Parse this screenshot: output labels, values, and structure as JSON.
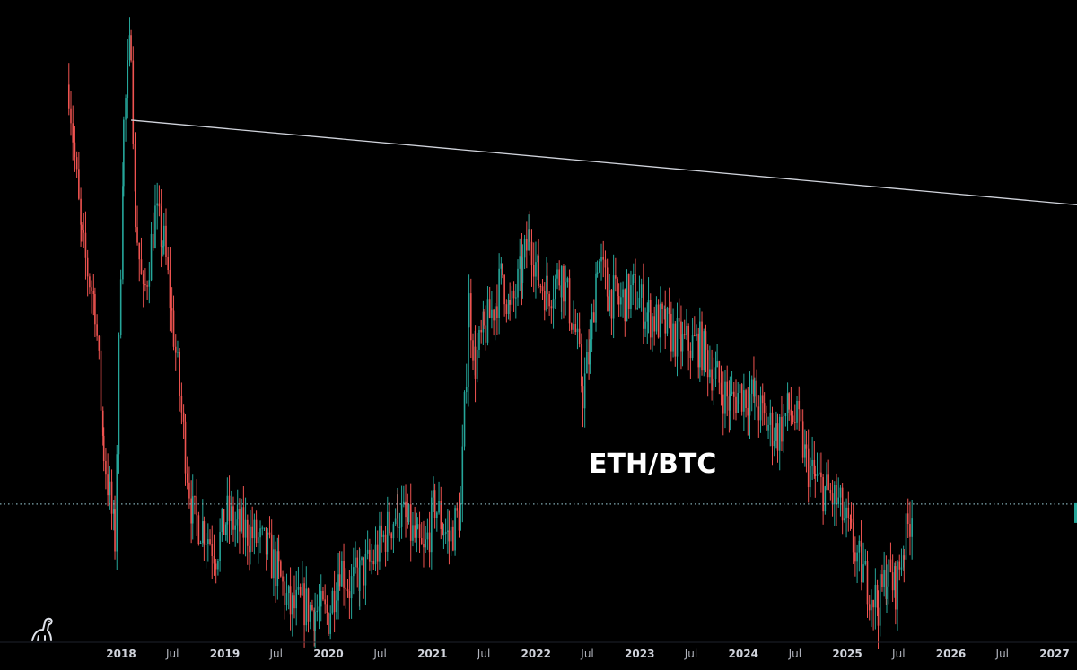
{
  "chart_data": {
    "type": "candlestick",
    "title": "ETH/BTC",
    "x_axis": {
      "ticks": [
        {
          "label": "2018",
          "date": "2018-01-01",
          "kind": "year"
        },
        {
          "label": "Jul",
          "date": "2018-07-01",
          "kind": "month"
        },
        {
          "label": "2019",
          "date": "2019-01-01",
          "kind": "year"
        },
        {
          "label": "Jul",
          "date": "2019-07-01",
          "kind": "month"
        },
        {
          "label": "2020",
          "date": "2020-01-01",
          "kind": "year"
        },
        {
          "label": "Jul",
          "date": "2020-07-01",
          "kind": "month"
        },
        {
          "label": "2021",
          "date": "2021-01-01",
          "kind": "year"
        },
        {
          "label": "Jul",
          "date": "2021-07-01",
          "kind": "month"
        },
        {
          "label": "2022",
          "date": "2022-01-01",
          "kind": "year"
        },
        {
          "label": "Jul",
          "date": "2022-07-01",
          "kind": "month"
        },
        {
          "label": "2023",
          "date": "2023-01-01",
          "kind": "year"
        },
        {
          "label": "Jul",
          "date": "2023-07-01",
          "kind": "month"
        },
        {
          "label": "2024",
          "date": "2024-01-01",
          "kind": "year"
        },
        {
          "label": "Jul",
          "date": "2024-07-01",
          "kind": "month"
        },
        {
          "label": "2025",
          "date": "2025-01-01",
          "kind": "year"
        },
        {
          "label": "Jul",
          "date": "2025-07-01",
          "kind": "month"
        },
        {
          "label": "2026",
          "date": "2026-01-01",
          "kind": "year"
        },
        {
          "label": "Jul",
          "date": "2026-07-01",
          "kind": "month"
        },
        {
          "label": "2027",
          "date": "2027-01-01",
          "kind": "year"
        }
      ]
    },
    "price_path": [
      [
        "2017-07-01",
        0.107
      ],
      [
        "2017-08-15",
        0.08
      ],
      [
        "2017-10-01",
        0.07
      ],
      [
        "2017-11-01",
        0.045
      ],
      [
        "2017-12-10",
        0.03
      ],
      [
        "2018-01-10",
        0.1
      ],
      [
        "2018-02-05",
        0.115
      ],
      [
        "2018-02-20",
        0.085
      ],
      [
        "2018-03-20",
        0.07
      ],
      [
        "2018-05-01",
        0.085
      ],
      [
        "2018-06-01",
        0.08
      ],
      [
        "2018-07-05",
        0.065
      ],
      [
        "2018-08-15",
        0.045
      ],
      [
        "2018-09-10",
        0.034
      ],
      [
        "2018-10-20",
        0.032
      ],
      [
        "2018-12-01",
        0.028
      ],
      [
        "2019-01-10",
        0.034
      ],
      [
        "2019-02-15",
        0.032
      ],
      [
        "2019-04-01",
        0.031
      ],
      [
        "2019-06-01",
        0.028
      ],
      [
        "2019-07-10",
        0.024
      ],
      [
        "2019-08-20",
        0.018
      ],
      [
        "2019-10-01",
        0.019
      ],
      [
        "2019-11-15",
        0.018
      ],
      [
        "2020-01-01",
        0.017
      ],
      [
        "2020-02-10",
        0.026
      ],
      [
        "2020-03-15",
        0.022
      ],
      [
        "2020-04-20",
        0.024
      ],
      [
        "2020-06-01",
        0.026
      ],
      [
        "2020-07-20",
        0.031
      ],
      [
        "2020-09-01",
        0.035
      ],
      [
        "2020-10-10",
        0.032
      ],
      [
        "2020-11-10",
        0.029
      ],
      [
        "2020-12-01",
        0.027
      ],
      [
        "2021-01-10",
        0.036
      ],
      [
        "2021-02-10",
        0.032
      ],
      [
        "2021-03-01",
        0.03
      ],
      [
        "2021-04-10",
        0.035
      ],
      [
        "2021-05-10",
        0.07
      ],
      [
        "2021-06-01",
        0.06
      ],
      [
        "2021-07-01",
        0.065
      ],
      [
        "2021-08-10",
        0.07
      ],
      [
        "2021-09-05",
        0.075
      ],
      [
        "2021-10-01",
        0.068
      ],
      [
        "2021-11-15",
        0.076
      ],
      [
        "2021-12-10",
        0.082
      ],
      [
        "2022-01-10",
        0.074
      ],
      [
        "2022-02-10",
        0.072
      ],
      [
        "2022-04-01",
        0.075
      ],
      [
        "2022-05-20",
        0.065
      ],
      [
        "2022-06-15",
        0.055
      ],
      [
        "2022-07-10",
        0.062
      ],
      [
        "2022-08-05",
        0.078
      ],
      [
        "2022-09-10",
        0.072
      ],
      [
        "2022-10-20",
        0.07
      ],
      [
        "2022-12-10",
        0.072
      ],
      [
        "2023-02-01",
        0.068
      ],
      [
        "2023-04-01",
        0.066
      ],
      [
        "2023-06-01",
        0.063
      ],
      [
        "2023-08-01",
        0.063
      ],
      [
        "2023-10-01",
        0.057
      ],
      [
        "2023-11-15",
        0.053
      ],
      [
        "2023-12-20",
        0.055
      ],
      [
        "2024-02-10",
        0.054
      ],
      [
        "2024-03-15",
        0.05
      ],
      [
        "2024-05-01",
        0.048
      ],
      [
        "2024-06-10",
        0.052
      ],
      [
        "2024-07-15",
        0.049
      ],
      [
        "2024-08-10",
        0.043
      ],
      [
        "2024-09-10",
        0.04
      ],
      [
        "2024-10-20",
        0.038
      ],
      [
        "2024-12-01",
        0.036
      ],
      [
        "2025-01-15",
        0.03
      ],
      [
        "2025-02-20",
        0.025
      ],
      [
        "2025-03-20",
        0.022
      ],
      [
        "2025-04-20",
        0.019
      ],
      [
        "2025-05-20",
        0.024
      ],
      [
        "2025-06-20",
        0.022
      ],
      [
        "2025-07-20",
        0.029
      ],
      [
        "2025-08-20",
        0.036
      ]
    ],
    "price_range": [
      0.017,
      0.118
    ],
    "trendline": {
      "start": [
        "2018-02-05",
        0.101
      ],
      "end": [
        "2027-01-01",
        0.087
      ]
    },
    "horizontal_level": 0.036,
    "colors": {
      "background": "#000000",
      "up_candle": "#26a69a",
      "down_candle": "#ef5350",
      "trendline": "#d1d4dc",
      "level_line": "#7fa8b0",
      "price_marker": "#26a69a",
      "axis_text": "#b2b5be"
    },
    "grid": false
  }
}
